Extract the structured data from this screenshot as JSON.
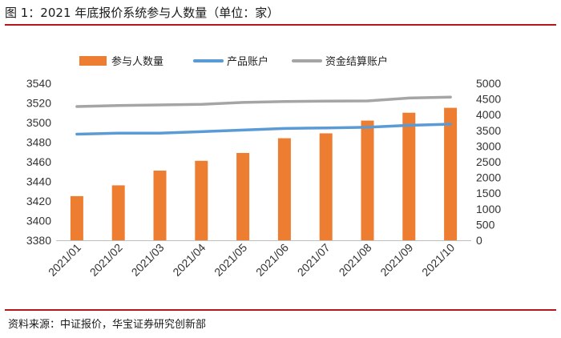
{
  "title": "图 1：2021 年底报价系统参与人数量（单位：家）",
  "source": "资料来源：中证报价，华宝证券研究创新部",
  "colors": {
    "accent": "#b5161b",
    "bar": "#ed7d31",
    "line_product": "#5b9bd5",
    "line_fund": "#a5a5a5"
  },
  "chart_data": {
    "type": "bar",
    "title": "",
    "categories": [
      "2021/01",
      "2021/02",
      "2021/03",
      "2021/04",
      "2021/05",
      "2021/06",
      "2021/07",
      "2021/08",
      "2021/09",
      "2021/10"
    ],
    "series": [
      {
        "name": "参与人数量",
        "type": "bar",
        "axis": "left",
        "values": [
          3425,
          3436,
          3451,
          3461,
          3469,
          3484,
          3489,
          3502,
          3510,
          3515
        ]
      },
      {
        "name": "产品账户",
        "type": "line",
        "axis": "right",
        "values": [
          3380,
          3410,
          3410,
          3460,
          3510,
          3560,
          3580,
          3600,
          3660,
          3700
        ]
      },
      {
        "name": "资金结算账户",
        "type": "line",
        "axis": "right",
        "values": [
          4260,
          4290,
          4310,
          4330,
          4390,
          4420,
          4430,
          4440,
          4530,
          4560
        ]
      }
    ],
    "y_left": {
      "min": 3380,
      "max": 3540,
      "step": 20,
      "ticks": [
        "3380",
        "3400",
        "3420",
        "3440",
        "3460",
        "3480",
        "3500",
        "3520",
        "3540"
      ]
    },
    "y_right": {
      "min": 0,
      "max": 5000,
      "step": 500,
      "ticks": [
        "0",
        "500",
        "1000",
        "1500",
        "2000",
        "2500",
        "3000",
        "3500",
        "4000",
        "4500",
        "5000"
      ]
    },
    "legend_position": "top",
    "grid": false
  }
}
